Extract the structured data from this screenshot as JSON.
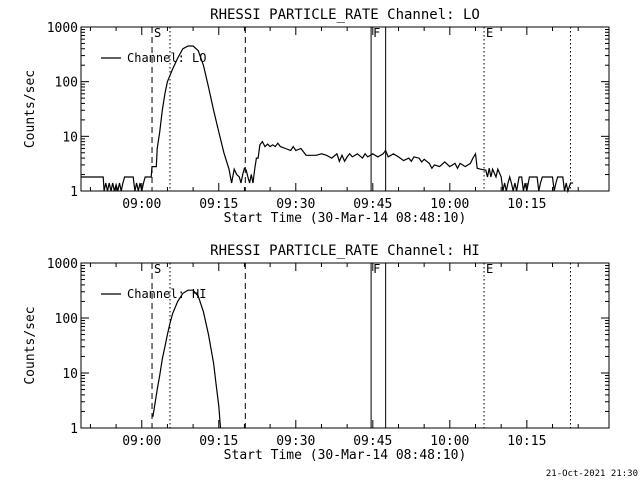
{
  "footer": {
    "timestamp": "21-Oct-2021 21:30"
  },
  "chart_data": [
    {
      "type": "line",
      "title": "RHESSI PARTICLE_RATE Channel: LO",
      "xlabel": "Start Time (30-Mar-14 08:48:10)",
      "ylabel": "Counts/sec",
      "y_scale": "log",
      "ylim": [
        1,
        1000
      ],
      "xlim": [
        "08:48:10",
        "10:31:00"
      ],
      "grid": false,
      "legend_position": "top-left",
      "x_ticks": [
        "09:00",
        "09:15",
        "09:30",
        "09:45",
        "10:00",
        "10:15"
      ],
      "y_ticks": [
        "1",
        "10",
        "100",
        "1000"
      ],
      "markers": [
        {
          "label": "S",
          "time": "09:02:00",
          "style": "dashed"
        },
        {
          "label": "",
          "time": "09:05:30",
          "style": "dotted"
        },
        {
          "label": "",
          "time": "09:20:10",
          "style": "dashed"
        },
        {
          "label": "F",
          "time": "09:44:40",
          "style": "solid"
        },
        {
          "label": "",
          "time": "09:47:30",
          "style": "solid"
        },
        {
          "label": "E",
          "time": "10:06:40",
          "style": "dotted"
        },
        {
          "label": "",
          "time": "10:23:30",
          "style": "dotted"
        }
      ],
      "series": [
        {
          "name": "Channel: LO",
          "points": [
            [
              "08:48:10",
              1.8
            ],
            [
              "08:52:30",
              1.8
            ],
            [
              "08:52:40",
              1
            ],
            [
              "08:53:00",
              1.4
            ],
            [
              "08:53:20",
              1
            ],
            [
              "08:53:40",
              1.4
            ],
            [
              "08:54:00",
              1
            ],
            [
              "08:54:20",
              1.4
            ],
            [
              "08:54:40",
              1
            ],
            [
              "08:55:00",
              1.3
            ],
            [
              "08:55:20",
              1
            ],
            [
              "08:55:40",
              1.4
            ],
            [
              "08:56:00",
              1
            ],
            [
              "08:56:20",
              1.4
            ],
            [
              "08:56:40",
              1.8
            ],
            [
              "08:58:20",
              1.8
            ],
            [
              "08:58:40",
              1
            ],
            [
              "08:59:00",
              1.4
            ],
            [
              "08:59:20",
              1
            ],
            [
              "08:59:40",
              1.4
            ],
            [
              "09:00:00",
              1
            ],
            [
              "09:00:20",
              1.4
            ],
            [
              "09:00:40",
              1.8
            ],
            [
              "09:01:50",
              1.8
            ],
            [
              "09:02:00",
              2.8
            ],
            [
              "09:02:50",
              2.8
            ],
            [
              "09:03:00",
              6
            ],
            [
              "09:03:30",
              12
            ],
            [
              "09:04:00",
              30
            ],
            [
              "09:04:30",
              60
            ],
            [
              "09:05:00",
              100
            ],
            [
              "09:06:00",
              170
            ],
            [
              "09:07:00",
              270
            ],
            [
              "09:08:00",
              400
            ],
            [
              "09:09:00",
              450
            ],
            [
              "09:10:00",
              450
            ],
            [
              "09:11:00",
              370
            ],
            [
              "09:12:00",
              200
            ],
            [
              "09:13:00",
              80
            ],
            [
              "09:14:00",
              30
            ],
            [
              "09:15:00",
              12
            ],
            [
              "09:16:00",
              5
            ],
            [
              "09:17:00",
              2.5
            ],
            [
              "09:17:30",
              1.4
            ],
            [
              "09:18:00",
              2.5
            ],
            [
              "09:18:30",
              2
            ],
            [
              "09:19:00",
              1.8
            ],
            [
              "09:19:20",
              1.4
            ],
            [
              "09:19:40",
              2
            ],
            [
              "09:20:00",
              2.6
            ],
            [
              "09:20:20",
              2.4
            ],
            [
              "09:20:40",
              1.8
            ],
            [
              "09:21:00",
              1.4
            ],
            [
              "09:21:20",
              2
            ],
            [
              "09:21:40",
              1.4
            ],
            [
              "09:22:00",
              2.5
            ],
            [
              "09:22:20",
              4
            ],
            [
              "09:22:40",
              4
            ],
            [
              "09:23:00",
              7
            ],
            [
              "09:23:30",
              8
            ],
            [
              "09:24:00",
              6.5
            ],
            [
              "09:24:30",
              7.2
            ],
            [
              "09:25:00",
              6.5
            ],
            [
              "09:25:30",
              7
            ],
            [
              "09:26:00",
              6.5
            ],
            [
              "09:26:30",
              7.5
            ],
            [
              "09:27:00",
              6.5
            ],
            [
              "09:28:00",
              6
            ],
            [
              "09:29:00",
              5.5
            ],
            [
              "09:29:30",
              6.5
            ],
            [
              "09:30:00",
              5.5
            ],
            [
              "09:31:00",
              6
            ],
            [
              "09:32:00",
              4.5
            ],
            [
              "09:34:00",
              4.5
            ],
            [
              "09:35:00",
              4.8
            ],
            [
              "09:36:00",
              4.5
            ],
            [
              "09:37:00",
              4
            ],
            [
              "09:38:00",
              4.8
            ],
            [
              "09:38:30",
              3.5
            ],
            [
              "09:39:00",
              4.5
            ],
            [
              "09:39:30",
              3.5
            ],
            [
              "09:40:00",
              4.2
            ],
            [
              "09:40:30",
              4.8
            ],
            [
              "09:41:00",
              4.2
            ],
            [
              "09:42:00",
              4.8
            ],
            [
              "09:43:00",
              4
            ],
            [
              "09:43:30",
              4.8
            ],
            [
              "09:44:00",
              4.2
            ],
            [
              "09:45:00",
              4.8
            ],
            [
              "09:46:00",
              4.2
            ],
            [
              "09:47:00",
              4.8
            ],
            [
              "09:47:30",
              5.5
            ],
            [
              "09:48:00",
              4.2
            ],
            [
              "09:49:00",
              4.8
            ],
            [
              "09:50:00",
              4.2
            ],
            [
              "09:51:00",
              3.6
            ],
            [
              "09:52:00",
              4
            ],
            [
              "09:52:30",
              3.5
            ],
            [
              "09:53:00",
              4.2
            ],
            [
              "09:54:00",
              4
            ],
            [
              "09:54:30",
              3.4
            ],
            [
              "09:55:00",
              3.8
            ],
            [
              "09:56:00",
              3.2
            ],
            [
              "09:56:30",
              2.6
            ],
            [
              "09:57:00",
              3
            ],
            [
              "09:58:00",
              2.8
            ],
            [
              "09:59:00",
              3.4
            ],
            [
              "10:00:00",
              2.8
            ],
            [
              "10:01:00",
              3.2
            ],
            [
              "10:01:30",
              2.6
            ],
            [
              "10:02:00",
              3.2
            ],
            [
              "10:03:00",
              2.8
            ],
            [
              "10:04:00",
              3.2
            ],
            [
              "10:04:30",
              4
            ],
            [
              "10:05:00",
              4.8
            ],
            [
              "10:05:20",
              2.6
            ],
            [
              "10:06:00",
              2.5
            ],
            [
              "10:07:00",
              2.4
            ],
            [
              "10:07:20",
              1.8
            ],
            [
              "10:07:40",
              2.6
            ],
            [
              "10:08:00",
              1.8
            ],
            [
              "10:08:20",
              2.5
            ],
            [
              "10:09:00",
              1.8
            ],
            [
              "10:09:20",
              2.5
            ],
            [
              "10:10:00",
              1.8
            ],
            [
              "10:10:20",
              1
            ],
            [
              "10:10:40",
              1.4
            ],
            [
              "10:11:00",
              1
            ],
            [
              "10:11:20",
              1.4
            ],
            [
              "10:11:40",
              1.8
            ],
            [
              "10:12:00",
              1.4
            ],
            [
              "10:12:20",
              1
            ],
            [
              "10:12:40",
              1.4
            ],
            [
              "10:13:00",
              1
            ],
            [
              "10:13:30",
              1.8
            ],
            [
              "10:14:00",
              1.8
            ],
            [
              "10:14:20",
              1
            ],
            [
              "10:14:40",
              1.4
            ],
            [
              "10:15:00",
              1
            ],
            [
              "10:15:30",
              1.8
            ],
            [
              "10:17:00",
              1.8
            ],
            [
              "10:17:20",
              1
            ],
            [
              "10:17:40",
              1.4
            ],
            [
              "10:18:00",
              1.8
            ],
            [
              "10:20:00",
              1.8
            ],
            [
              "10:20:20",
              1
            ],
            [
              "10:20:40",
              1.4
            ],
            [
              "10:21:00",
              1.8
            ],
            [
              "10:22:00",
              1.8
            ],
            [
              "10:22:20",
              1
            ],
            [
              "10:22:40",
              1.4
            ],
            [
              "10:23:00",
              1
            ],
            [
              "10:23:30",
              1.4
            ],
            [
              "10:24:00",
              1.4
            ]
          ]
        }
      ]
    },
    {
      "type": "line",
      "title": "RHESSI PARTICLE_RATE Channel: HI",
      "xlabel": "Start Time (30-Mar-14 08:48:10)",
      "ylabel": "Counts/sec",
      "y_scale": "log",
      "ylim": [
        1,
        1000
      ],
      "xlim": [
        "08:48:10",
        "10:31:00"
      ],
      "grid": false,
      "legend_position": "top-left",
      "x_ticks": [
        "09:00",
        "09:15",
        "09:30",
        "09:45",
        "10:00",
        "10:15"
      ],
      "y_ticks": [
        "1",
        "10",
        "100",
        "1000"
      ],
      "markers": [
        {
          "label": "S",
          "time": "09:02:00",
          "style": "dashed"
        },
        {
          "label": "",
          "time": "09:05:30",
          "style": "dotted"
        },
        {
          "label": "",
          "time": "09:20:10",
          "style": "dashed"
        },
        {
          "label": "F",
          "time": "09:44:40",
          "style": "solid"
        },
        {
          "label": "",
          "time": "09:47:30",
          "style": "solid"
        },
        {
          "label": "E",
          "time": "10:06:40",
          "style": "dotted"
        },
        {
          "label": "",
          "time": "10:23:30",
          "style": "dotted"
        }
      ],
      "series": [
        {
          "name": "Channel: HI",
          "points": [
            [
              "09:02:10",
              1.6
            ],
            [
              "09:02:30",
              2.5
            ],
            [
              "09:03:00",
              5
            ],
            [
              "09:03:30",
              9
            ],
            [
              "09:04:00",
              18
            ],
            [
              "09:04:30",
              30
            ],
            [
              "09:05:00",
              50
            ],
            [
              "09:05:30",
              80
            ],
            [
              "09:06:00",
              120
            ],
            [
              "09:07:00",
              200
            ],
            [
              "09:08:00",
              280
            ],
            [
              "09:09:00",
              320
            ],
            [
              "09:10:00",
              320
            ],
            [
              "09:11:00",
              250
            ],
            [
              "09:12:00",
              130
            ],
            [
              "09:13:00",
              50
            ],
            [
              "09:14:00",
              15
            ],
            [
              "09:14:30",
              6
            ],
            [
              "09:15:00",
              2.5
            ],
            [
              "09:15:20",
              1
            ]
          ]
        }
      ]
    }
  ]
}
